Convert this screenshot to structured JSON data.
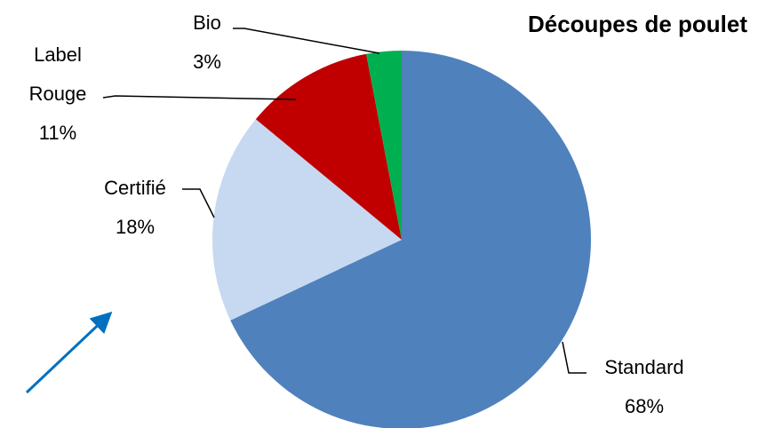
{
  "chart_data": {
    "type": "pie",
    "title": "Découpes de poulet",
    "categories": [
      "Standard",
      "Certifié",
      "Label Rouge",
      "Bio"
    ],
    "values": [
      68,
      18,
      11,
      3
    ],
    "value_labels": [
      "68%",
      "18%",
      "11%",
      "3%"
    ],
    "colors": [
      "#4f81bd",
      "#c6d9f1",
      "#c00000",
      "#00b050"
    ]
  }
}
